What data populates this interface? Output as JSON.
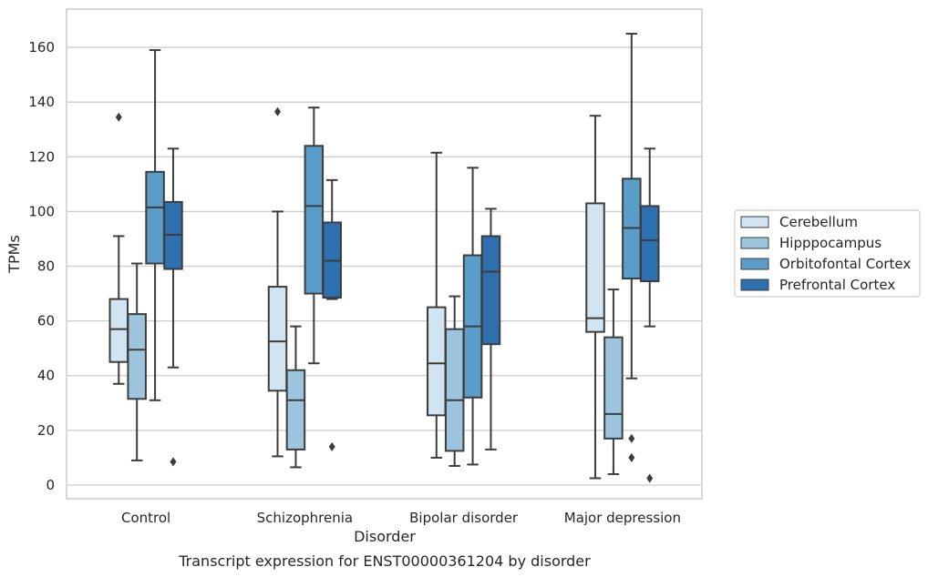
{
  "caption": "Transcript expression for ENST00000361204 by disorder",
  "chart_data": {
    "type": "boxplot",
    "xlabel": "Disorder",
    "ylabel": "TPMs",
    "ylim": [
      -5,
      174
    ],
    "yticks": [
      0,
      20,
      40,
      60,
      80,
      100,
      120,
      140,
      160
    ],
    "grid": "horizontal",
    "legend_position": "right",
    "categories": [
      "Control",
      "Schizophrenia",
      "Bipolar disorder",
      "Major depression"
    ],
    "series": [
      {
        "name": "Cerebellum",
        "color": "#d2e3f2",
        "boxes": [
          {
            "whisker_low": 37,
            "q1": 45,
            "median": 57,
            "q3": 68,
            "whisker_high": 91,
            "fliers": [
              134.5
            ]
          },
          {
            "whisker_low": 10.5,
            "q1": 34.5,
            "median": 52.5,
            "q3": 72.5,
            "whisker_high": 100,
            "fliers": [
              136.5
            ]
          },
          {
            "whisker_low": 10,
            "q1": 25.5,
            "median": 44.5,
            "q3": 65,
            "whisker_high": 121.5,
            "fliers": []
          },
          {
            "whisker_low": 2.5,
            "q1": 56,
            "median": 61,
            "q3": 103,
            "whisker_high": 135,
            "fliers": []
          }
        ]
      },
      {
        "name": "Hipppocampus",
        "color": "#9dc5de",
        "boxes": [
          {
            "whisker_low": 9,
            "q1": 31.5,
            "median": 49.5,
            "q3": 62.5,
            "whisker_high": 81,
            "fliers": []
          },
          {
            "whisker_low": 6.5,
            "q1": 13,
            "median": 31,
            "q3": 42,
            "whisker_high": 58,
            "fliers": []
          },
          {
            "whisker_low": 7,
            "q1": 12.5,
            "median": 31,
            "q3": 57,
            "whisker_high": 69,
            "fliers": []
          },
          {
            "whisker_low": 4,
            "q1": 17,
            "median": 26,
            "q3": 54,
            "whisker_high": 71.5,
            "fliers": []
          }
        ]
      },
      {
        "name": "Orbitofontal Cortex",
        "color": "#5b9dc9",
        "boxes": [
          {
            "whisker_low": 31,
            "q1": 81,
            "median": 101.5,
            "q3": 114.5,
            "whisker_high": 159,
            "fliers": []
          },
          {
            "whisker_low": 44.5,
            "q1": 70,
            "median": 102,
            "q3": 124,
            "whisker_high": 138,
            "fliers": []
          },
          {
            "whisker_low": 7.5,
            "q1": 32,
            "median": 58,
            "q3": 84,
            "whisker_high": 116,
            "fliers": []
          },
          {
            "whisker_low": 39,
            "q1": 75.5,
            "median": 94,
            "q3": 112,
            "whisker_high": 165,
            "fliers": [
              17,
              10
            ]
          }
        ]
      },
      {
        "name": "Prefrontal Cortex",
        "color": "#2e6faf",
        "boxes": [
          {
            "whisker_low": 43,
            "q1": 79,
            "median": 91.5,
            "q3": 103.5,
            "whisker_high": 123,
            "fliers": [
              8.5
            ]
          },
          {
            "whisker_low": 68,
            "q1": 68.5,
            "median": 82,
            "q3": 96,
            "whisker_high": 111.5,
            "fliers": [
              14
            ]
          },
          {
            "whisker_low": 13,
            "q1": 51.5,
            "median": 78,
            "q3": 91,
            "whisker_high": 101,
            "fliers": []
          },
          {
            "whisker_low": 58,
            "q1": 74.5,
            "median": 89.5,
            "q3": 102,
            "whisker_high": 123,
            "fliers": [
              2.5
            ]
          }
        ]
      }
    ]
  }
}
